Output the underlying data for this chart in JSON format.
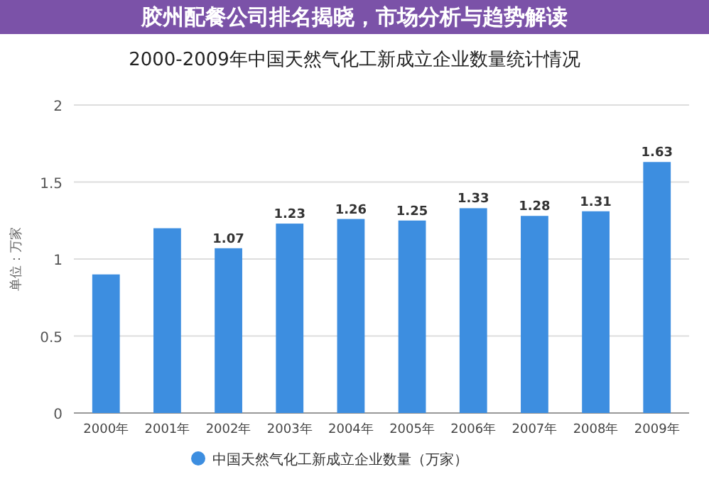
{
  "chart_data": {
    "type": "bar",
    "title": "2000-2009年中国天然气化工新成立企业数量统计情况",
    "ylabel": "单位：万家",
    "annotations": [
      "胶州配餐公司排名揭晓，市场分析与趋势解读"
    ],
    "categories": [
      "2000年",
      "2001年",
      "2002年",
      "2003年",
      "2004年",
      "2005年",
      "2006年",
      "2007年",
      "2008年",
      "2009年"
    ],
    "series": [
      {
        "name": "中国天然气化工新成立企业数量（万家）",
        "color": "#3d8ee0",
        "values": [
          0.9,
          1.2,
          1.07,
          1.23,
          1.26,
          1.25,
          1.33,
          1.28,
          1.31,
          1.63
        ],
        "value_labels": [
          null,
          null,
          "1.07",
          "1.23",
          "1.26",
          "1.25",
          "1.33",
          "1.28",
          "1.31",
          "1.63"
        ]
      }
    ],
    "ylim": [
      0,
      2
    ],
    "yticks": [
      0,
      0.5,
      1,
      1.5,
      2
    ],
    "grid": "y",
    "legend": "bottom"
  }
}
